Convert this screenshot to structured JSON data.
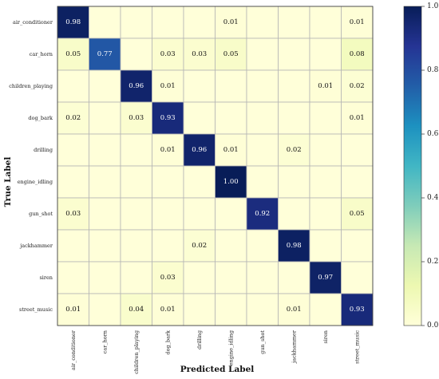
{
  "chart_data": {
    "type": "heatmap",
    "title": "",
    "xlabel": "Predicted Label",
    "ylabel": "True Label",
    "rows": [
      "air_conditioner",
      "car_horn",
      "children_playing",
      "dog_bark",
      "drilling",
      "engine_idling",
      "gun_shot",
      "jackhammer",
      "siren",
      "street_music"
    ],
    "cols": [
      "air_conditioner",
      "car_horn",
      "children_playing",
      "dog_bark",
      "drilling",
      "engine_idling",
      "gun_shot",
      "jackhammer",
      "siren",
      "street_music"
    ],
    "values": [
      [
        0.98,
        0,
        0,
        0,
        0,
        0.01,
        0,
        0,
        0,
        0.01
      ],
      [
        0.05,
        0.77,
        0,
        0.03,
        0.03,
        0.05,
        0,
        0,
        0,
        0.08
      ],
      [
        0,
        0,
        0.96,
        0.01,
        0,
        0,
        0,
        0,
        0.01,
        0.02
      ],
      [
        0.02,
        0,
        0.03,
        0.93,
        0,
        0,
        0,
        0,
        0,
        0.01
      ],
      [
        0,
        0,
        0,
        0.01,
        0.96,
        0.01,
        0,
        0.02,
        0,
        0
      ],
      [
        0,
        0,
        0,
        0,
        0,
        1.0,
        0,
        0,
        0,
        0
      ],
      [
        0.03,
        0,
        0,
        0,
        0,
        0,
        0.92,
        0,
        0,
        0.05
      ],
      [
        0,
        0,
        0,
        0,
        0.02,
        0,
        0,
        0.98,
        0,
        0
      ],
      [
        0,
        0,
        0,
        0.03,
        0,
        0,
        0,
        0,
        0.97,
        0
      ],
      [
        0.01,
        0,
        0.04,
        0.01,
        0,
        0,
        0,
        0.01,
        0,
        0.93
      ]
    ],
    "colorbar": {
      "colormap": "YlGnBu",
      "range": [
        0.0,
        1.0
      ],
      "ticks": [
        "0.0",
        "0.2",
        "0.4",
        "0.6",
        "0.8",
        "1.0"
      ]
    },
    "grid": true
  }
}
